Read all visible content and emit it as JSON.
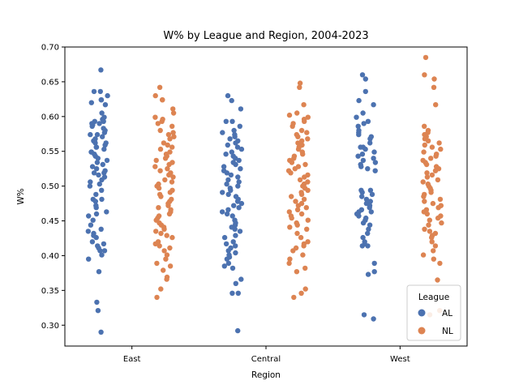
{
  "chart_data": {
    "type": "scatter",
    "subtype": "strip",
    "title": "W% by League and Region, 2004-2023",
    "xlabel": "Region",
    "ylabel": "W%",
    "categories": [
      "East",
      "Central",
      "West"
    ],
    "ylim": [
      0.27,
      0.7
    ],
    "yticks": [
      "0.30",
      "0.35",
      "0.40",
      "0.45",
      "0.50",
      "0.55",
      "0.60",
      "0.65",
      "0.70"
    ],
    "grid": false,
    "legend": {
      "title": "League",
      "position": "bottom-right"
    },
    "series": [
      {
        "name": "AL",
        "color": "#4c72b0",
        "points": {
          "East": [
            0.667,
            0.636,
            0.636,
            0.63,
            0.624,
            0.624,
            0.62,
            0.617,
            0.605,
            0.599,
            0.596,
            0.593,
            0.593,
            0.59,
            0.59,
            0.588,
            0.586,
            0.583,
            0.58,
            0.577,
            0.574,
            0.574,
            0.571,
            0.568,
            0.565,
            0.562,
            0.562,
            0.559,
            0.556,
            0.556,
            0.553,
            0.549,
            0.549,
            0.546,
            0.543,
            0.54,
            0.537,
            0.534,
            0.531,
            0.528,
            0.525,
            0.522,
            0.519,
            0.519,
            0.516,
            0.513,
            0.509,
            0.506,
            0.503,
            0.5,
            0.494,
            0.488,
            0.481,
            0.481,
            0.478,
            0.472,
            0.469,
            0.463,
            0.46,
            0.457,
            0.451,
            0.444,
            0.438,
            0.435,
            0.432,
            0.429,
            0.426,
            0.42,
            0.417,
            0.414,
            0.411,
            0.407,
            0.407,
            0.401,
            0.395,
            0.377,
            0.333,
            0.321,
            0.29
          ],
          "Central": [
            0.63,
            0.623,
            0.611,
            0.593,
            0.593,
            0.586,
            0.58,
            0.577,
            0.574,
            0.571,
            0.568,
            0.565,
            0.562,
            0.559,
            0.556,
            0.553,
            0.549,
            0.546,
            0.543,
            0.54,
            0.537,
            0.534,
            0.531,
            0.528,
            0.525,
            0.522,
            0.519,
            0.516,
            0.513,
            0.509,
            0.506,
            0.503,
            0.5,
            0.497,
            0.494,
            0.491,
            0.488,
            0.485,
            0.481,
            0.478,
            0.475,
            0.472,
            0.469,
            0.466,
            0.463,
            0.46,
            0.457,
            0.451,
            0.447,
            0.444,
            0.441,
            0.438,
            0.435,
            0.429,
            0.426,
            0.42,
            0.417,
            0.414,
            0.411,
            0.407,
            0.404,
            0.401,
            0.398,
            0.395,
            0.389,
            0.385,
            0.382,
            0.366,
            0.36,
            0.346,
            0.346,
            0.292
          ],
          "West": [
            0.66,
            0.654,
            0.636,
            0.623,
            0.617,
            0.605,
            0.599,
            0.593,
            0.59,
            0.586,
            0.58,
            0.577,
            0.574,
            0.571,
            0.568,
            0.562,
            0.556,
            0.556,
            0.553,
            0.549,
            0.546,
            0.543,
            0.54,
            0.537,
            0.534,
            0.531,
            0.528,
            0.525,
            0.522,
            0.494,
            0.494,
            0.491,
            0.488,
            0.485,
            0.481,
            0.478,
            0.475,
            0.472,
            0.469,
            0.466,
            0.463,
            0.463,
            0.46,
            0.457,
            0.454,
            0.451,
            0.447,
            0.444,
            0.438,
            0.432,
            0.426,
            0.42,
            0.417,
            0.414,
            0.414,
            0.389,
            0.377,
            0.373,
            0.315,
            0.309
          ]
        }
      },
      {
        "name": "NL",
        "color": "#dd8452",
        "points": {
          "East": [
            0.642,
            0.63,
            0.624,
            0.624,
            0.611,
            0.605,
            0.599,
            0.596,
            0.593,
            0.59,
            0.586,
            0.58,
            0.577,
            0.574,
            0.571,
            0.568,
            0.562,
            0.559,
            0.556,
            0.553,
            0.549,
            0.546,
            0.543,
            0.54,
            0.537,
            0.534,
            0.531,
            0.528,
            0.525,
            0.522,
            0.519,
            0.516,
            0.513,
            0.509,
            0.506,
            0.503,
            0.5,
            0.497,
            0.494,
            0.491,
            0.488,
            0.485,
            0.481,
            0.478,
            0.475,
            0.472,
            0.469,
            0.466,
            0.463,
            0.46,
            0.457,
            0.454,
            0.451,
            0.447,
            0.444,
            0.441,
            0.438,
            0.435,
            0.432,
            0.429,
            0.426,
            0.42,
            0.417,
            0.414,
            0.411,
            0.407,
            0.401,
            0.395,
            0.389,
            0.385,
            0.379,
            0.369,
            0.366,
            0.352,
            0.34
          ],
          "Central": [
            0.648,
            0.642,
            0.617,
            0.605,
            0.602,
            0.599,
            0.596,
            0.593,
            0.59,
            0.586,
            0.58,
            0.577,
            0.574,
            0.571,
            0.568,
            0.565,
            0.562,
            0.559,
            0.556,
            0.553,
            0.549,
            0.546,
            0.543,
            0.54,
            0.537,
            0.534,
            0.531,
            0.528,
            0.525,
            0.522,
            0.519,
            0.516,
            0.513,
            0.509,
            0.506,
            0.503,
            0.5,
            0.497,
            0.494,
            0.491,
            0.488,
            0.485,
            0.481,
            0.478,
            0.475,
            0.472,
            0.469,
            0.466,
            0.463,
            0.46,
            0.457,
            0.454,
            0.451,
            0.447,
            0.444,
            0.441,
            0.438,
            0.432,
            0.426,
            0.42,
            0.417,
            0.414,
            0.411,
            0.407,
            0.401,
            0.395,
            0.389,
            0.382,
            0.377,
            0.352,
            0.346,
            0.34
          ],
          "West": [
            0.685,
            0.66,
            0.654,
            0.642,
            0.617,
            0.586,
            0.58,
            0.577,
            0.574,
            0.571,
            0.568,
            0.565,
            0.562,
            0.559,
            0.556,
            0.553,
            0.549,
            0.546,
            0.543,
            0.54,
            0.537,
            0.534,
            0.531,
            0.528,
            0.525,
            0.522,
            0.519,
            0.516,
            0.513,
            0.509,
            0.506,
            0.503,
            0.5,
            0.497,
            0.494,
            0.491,
            0.488,
            0.485,
            0.481,
            0.478,
            0.475,
            0.472,
            0.469,
            0.466,
            0.463,
            0.46,
            0.457,
            0.454,
            0.451,
            0.447,
            0.444,
            0.438,
            0.435,
            0.432,
            0.429,
            0.426,
            0.42,
            0.414,
            0.407,
            0.401,
            0.395,
            0.389,
            0.365,
            0.321,
            0.315
          ]
        }
      }
    ]
  }
}
